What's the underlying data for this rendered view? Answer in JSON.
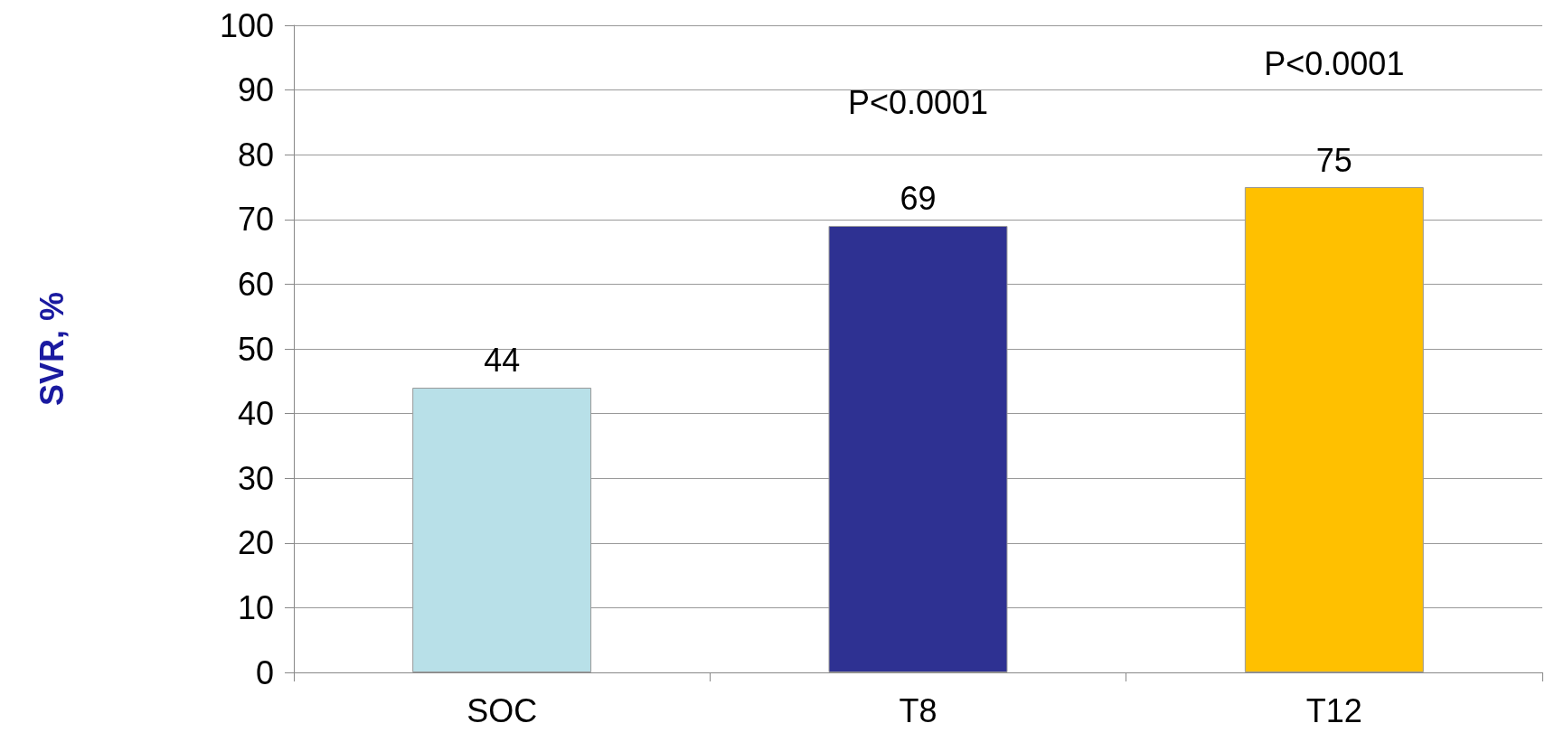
{
  "chart_data": {
    "type": "bar",
    "ylabel": "SVR, %",
    "categories": [
      "SOC",
      "T8",
      "T12"
    ],
    "values": [
      44,
      69,
      75
    ],
    "colors": [
      "#b8e0e8",
      "#2e3192",
      "#ffc000"
    ],
    "ylim": [
      0,
      100
    ],
    "yticks": [
      0,
      10,
      20,
      30,
      40,
      50,
      60,
      70,
      80,
      90,
      100
    ],
    "grid": "y",
    "data_labels": true,
    "annotations": [
      "P<0.0001",
      "P<0.0001"
    ]
  }
}
